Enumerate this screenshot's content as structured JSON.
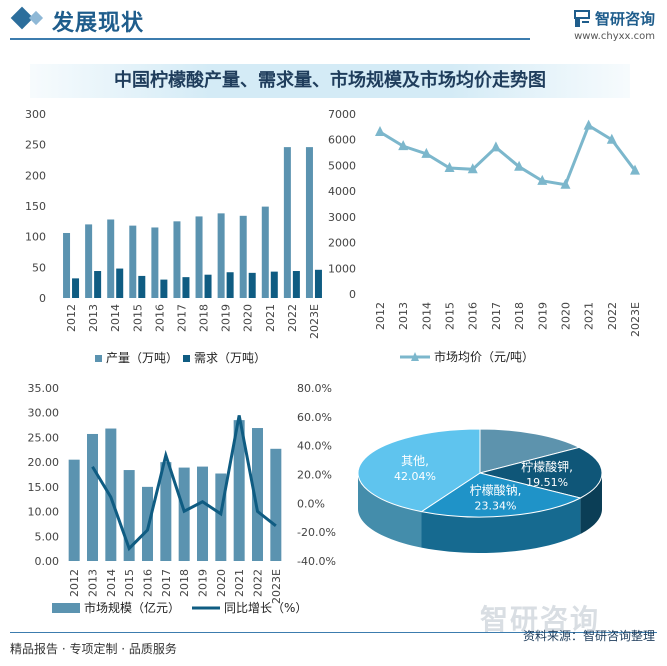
{
  "header": {
    "title": "发展现状"
  },
  "brand": {
    "name": "智研咨询",
    "url": "www.chyxx.com"
  },
  "main_title": "中国柠檬酸产量、需求量、市场规模及市场均价走势图",
  "footer": {
    "left": "精品报告 · 专项定制 · 品质服务",
    "right": "资料来源：智研咨询整理"
  },
  "watermark": {
    "text": "智研咨询"
  },
  "colors": {
    "bar_light": "#5b93b0",
    "bar_dark": "#0f5c82",
    "line_dark": "#0f5c82",
    "line_light": "#7cb7cc"
  },
  "chart_data": [
    {
      "type": "bar",
      "categories": [
        "2012",
        "2013",
        "2014",
        "2015",
        "2016",
        "2017",
        "2018",
        "2019",
        "2020",
        "2021",
        "2022",
        "2023E"
      ],
      "series": [
        {
          "name": "产量（万吨）",
          "values": [
            106,
            120,
            128,
            118,
            115,
            125,
            133,
            138,
            134,
            149,
            246,
            246
          ]
        },
        {
          "name": "需求（万吨）",
          "values": [
            32,
            44,
            48,
            36,
            30,
            34,
            38,
            42,
            41,
            43,
            44,
            46
          ]
        }
      ],
      "ylim": [
        0,
        300
      ],
      "yticks": [
        "0",
        "50",
        "100",
        "150",
        "200",
        "250",
        "300"
      ],
      "legend": "bottom"
    },
    {
      "type": "line",
      "categories": [
        "2012",
        "2013",
        "2014",
        "2015",
        "2016",
        "2017",
        "2018",
        "2019",
        "2020",
        "2021",
        "2022",
        "2023E"
      ],
      "series": [
        {
          "name": "市场均价（元/吨）",
          "values": [
            6300,
            5750,
            5450,
            4900,
            4850,
            5700,
            4950,
            4400,
            4250,
            6550,
            6000,
            4800
          ]
        }
      ],
      "ylim": [
        0,
        7000
      ],
      "yticks": [
        "0",
        "1000",
        "2000",
        "3000",
        "4000",
        "5000",
        "6000",
        "7000"
      ],
      "legend": "bottom"
    },
    {
      "type": "bar",
      "categories": [
        "2012",
        "2013",
        "2014",
        "2015",
        "2016",
        "2017",
        "2018",
        "2019",
        "2020",
        "2021",
        "2022",
        "2023E"
      ],
      "series": [
        {
          "name": "市场规模（亿元）",
          "values": [
            20.5,
            25.7,
            26.8,
            18.4,
            15.0,
            20.0,
            18.9,
            19.1,
            17.7,
            28.5,
            26.9,
            22.7
          ]
        }
      ],
      "line_series": [
        {
          "name": "同比增长（%）",
          "values": [
            null,
            25.4,
            4.3,
            -31.3,
            -18.5,
            33.3,
            -5.5,
            1.1,
            -7.3,
            61.0,
            -5.6,
            -15.6
          ]
        }
      ],
      "ylim": [
        0,
        35
      ],
      "yticks": [
        "0.00",
        "5.00",
        "10.00",
        "15.00",
        "20.00",
        "25.00",
        "30.00",
        "35.00"
      ],
      "y2lim": [
        -40,
        80
      ],
      "y2ticks": [
        "-40.0%",
        "-20.0%",
        "0.0%",
        "20.0%",
        "40.0%",
        "60.0%",
        "80.0%"
      ],
      "legend": "bottom"
    },
    {
      "type": "pie",
      "slices": [
        {
          "label": "其他,",
          "pct_label": "42.04%",
          "value": 42.04,
          "color": "#5fc4ee"
        },
        {
          "label": "柠檬酸钠,",
          "pct_label": "23.34%",
          "value": 23.34,
          "color": "#1f93c8"
        },
        {
          "label": "柠檬酸钾,",
          "pct_label": "19.51%",
          "value": 19.51,
          "color": "#0f5678"
        },
        {
          "label": "",
          "pct_label": "",
          "value": 15.11,
          "color": "#5d93ad"
        }
      ]
    }
  ]
}
